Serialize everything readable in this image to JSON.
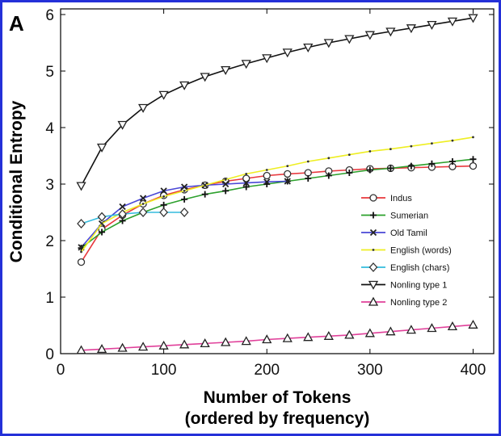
{
  "chart_data": {
    "type": "line",
    "panel_label": "A",
    "xlabel_line1": "Number of Tokens",
    "xlabel_line2": "(ordered by frequency)",
    "ylabel": "Conditional Entropy",
    "xlim": [
      0,
      420
    ],
    "ylim": [
      0,
      6.1
    ],
    "xticks": [
      0,
      100,
      200,
      300,
      400
    ],
    "yticks": [
      0,
      1,
      2,
      3,
      4,
      5,
      6
    ],
    "grid": false,
    "legend_position": "right",
    "series": [
      {
        "name": "Indus",
        "color": "#e8373c",
        "marker": "circle",
        "x": [
          20,
          40,
          60,
          80,
          100,
          120,
          140,
          160,
          180,
          200,
          220,
          240,
          260,
          280,
          300,
          320,
          340,
          360,
          380,
          400
        ],
        "y": [
          1.62,
          2.2,
          2.45,
          2.65,
          2.8,
          2.9,
          2.98,
          3.05,
          3.1,
          3.15,
          3.18,
          3.2,
          3.23,
          3.25,
          3.27,
          3.28,
          3.29,
          3.3,
          3.31,
          3.32
        ]
      },
      {
        "name": "Sumerian",
        "color": "#2ca02c",
        "marker": "plus",
        "x": [
          20,
          40,
          60,
          80,
          100,
          120,
          140,
          160,
          180,
          200,
          220,
          240,
          260,
          280,
          300,
          320,
          340,
          360,
          380,
          400
        ],
        "y": [
          1.87,
          2.15,
          2.35,
          2.5,
          2.63,
          2.73,
          2.82,
          2.88,
          2.95,
          3.0,
          3.05,
          3.1,
          3.15,
          3.2,
          3.25,
          3.28,
          3.32,
          3.36,
          3.4,
          3.44
        ]
      },
      {
        "name": "Old Tamil",
        "color": "#4a47d6",
        "marker": "x",
        "x": [
          20,
          40,
          60,
          80,
          100,
          120,
          140,
          160,
          180,
          200,
          220
        ],
        "y": [
          1.88,
          2.3,
          2.6,
          2.75,
          2.88,
          2.95,
          2.98,
          3.0,
          3.02,
          3.04,
          3.05
        ]
      },
      {
        "name": "English (words)",
        "color": "#eeee22",
        "marker": "dot",
        "x": [
          20,
          40,
          60,
          80,
          100,
          120,
          140,
          160,
          180,
          200,
          220,
          240,
          260,
          280,
          300,
          320,
          340,
          360,
          380,
          400
        ],
        "y": [
          1.8,
          2.3,
          2.5,
          2.65,
          2.78,
          2.88,
          2.98,
          3.08,
          3.18,
          3.25,
          3.32,
          3.4,
          3.46,
          3.52,
          3.58,
          3.62,
          3.67,
          3.72,
          3.77,
          3.83
        ]
      },
      {
        "name": "English (chars)",
        "color": "#33bbdd",
        "marker": "diamond",
        "x": [
          20,
          40,
          60,
          80,
          100,
          120
        ],
        "y": [
          2.3,
          2.42,
          2.47,
          2.5,
          2.5,
          2.5
        ]
      },
      {
        "name": "Nonling type 1",
        "color": "#111111",
        "marker": "triangle-down",
        "x": [
          20,
          40,
          60,
          80,
          100,
          120,
          140,
          160,
          180,
          200,
          220,
          240,
          260,
          280,
          300,
          320,
          340,
          360,
          380,
          400
        ],
        "y": [
          2.97,
          3.65,
          4.05,
          4.35,
          4.58,
          4.75,
          4.9,
          5.02,
          5.13,
          5.23,
          5.33,
          5.42,
          5.5,
          5.57,
          5.64,
          5.7,
          5.76,
          5.82,
          5.88,
          5.94
        ]
      },
      {
        "name": "Nonling type 2",
        "color": "#e0409a",
        "marker": "triangle-up",
        "x": [
          20,
          40,
          60,
          80,
          100,
          120,
          140,
          160,
          180,
          200,
          220,
          240,
          260,
          280,
          300,
          320,
          340,
          360,
          380,
          400
        ],
        "y": [
          0.06,
          0.08,
          0.1,
          0.12,
          0.14,
          0.16,
          0.18,
          0.2,
          0.22,
          0.25,
          0.27,
          0.29,
          0.31,
          0.33,
          0.36,
          0.39,
          0.42,
          0.45,
          0.48,
          0.51
        ]
      }
    ]
  }
}
